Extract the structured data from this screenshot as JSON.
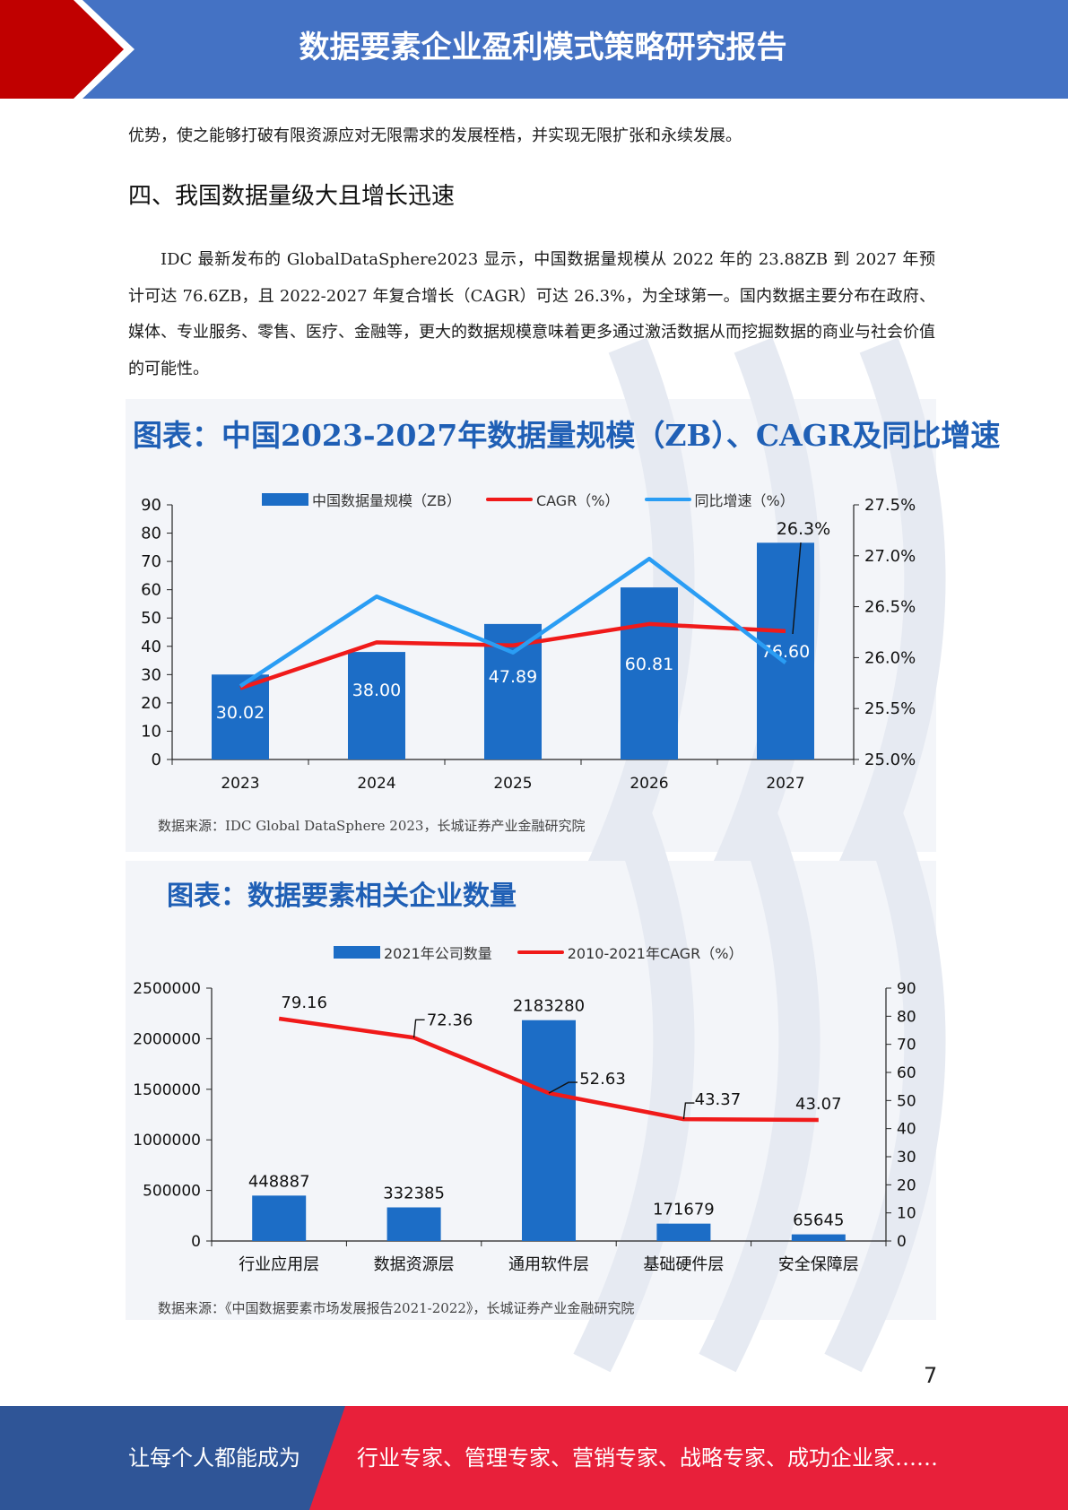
{
  "header": {
    "title": "数据要素企业盈利模式策略研究报告"
  },
  "paragraph1": "优势，使之能够打破有限资源应对无限需求的发展桎梏，并实现无限扩张和永续发展。",
  "section_title": "四、我国数据量级大且增长迅速",
  "paragraph2": "IDC 最新发布的 GlobalDataSphere2023 显示，中国数据量规模从 2022 年的 23.88ZB 到 2027 年预计可达 76.6ZB，且 2022-2027 年复合增长（CAGR）可达 26.3%，为全球第一。国内数据主要分布在政府、媒体、专业服务、零售、医疗、金融等，更大的数据规模意味着更多通过激活数据从而挖掘数据的商业与社会价值的可能性。",
  "chart_data": [
    {
      "type": "bar",
      "title": "图表：中国2023-2027年数据量规模（ZB）、CAGR及同比增速",
      "categories": [
        "2023",
        "2024",
        "2025",
        "2026",
        "2027"
      ],
      "series": [
        {
          "name": "中国数据量规模（ZB）",
          "type": "bar",
          "axis": "left",
          "color": "#1c6dc6",
          "values": [
            30.02,
            38.0,
            47.89,
            60.81,
            76.6
          ],
          "labels": [
            "30.02",
            "38.00",
            "47.89",
            "60.81",
            "76.60"
          ]
        },
        {
          "name": "CAGR（%）",
          "type": "line",
          "axis": "right",
          "color": "#f01a1a",
          "values": [
            25.7,
            26.15,
            26.12,
            26.33,
            26.26
          ]
        },
        {
          "name": "同比增速（%）",
          "type": "line",
          "axis": "right",
          "color": "#2a9df4",
          "values": [
            25.72,
            26.6,
            26.05,
            26.97,
            25.95
          ]
        }
      ],
      "annotation": "26.3%",
      "yleft_ticks": [
        "0",
        "10",
        "20",
        "30",
        "40",
        "50",
        "60",
        "70",
        "80",
        "90"
      ],
      "yleft_lim": [
        0,
        90
      ],
      "yright_ticks": [
        "25.0%",
        "25.5%",
        "26.0%",
        "26.5%",
        "27.0%",
        "27.5%"
      ],
      "yright_lim": [
        25.0,
        27.5
      ],
      "legend_position": "top",
      "source": "数据来源：IDC Global DataSphere 2023，长城证券产业金融研究院"
    },
    {
      "type": "bar",
      "title": "图表：数据要素相关企业数量",
      "categories": [
        "行业应用层",
        "数据资源层",
        "通用软件层",
        "基础硬件层",
        "安全保障层"
      ],
      "series": [
        {
          "name": "2021年公司数量",
          "type": "bar",
          "axis": "left",
          "color": "#1c6dc6",
          "values": [
            448887,
            332385,
            2183280,
            171679,
            65645
          ],
          "labels": [
            "448887",
            "332385",
            "2183280",
            "171679",
            "65645"
          ]
        },
        {
          "name": "2010-2021年CAGR（%）",
          "type": "line",
          "axis": "right",
          "color": "#f01a1a",
          "values": [
            79.16,
            72.36,
            52.63,
            43.37,
            43.07
          ],
          "labels": [
            "79.16",
            "72.36",
            "52.63",
            "43.37",
            "43.07"
          ]
        }
      ],
      "yleft_ticks": [
        "0",
        "500000",
        "1000000",
        "1500000",
        "2000000",
        "2500000"
      ],
      "yleft_lim": [
        0,
        2500000
      ],
      "yright_ticks": [
        "0",
        "10",
        "20",
        "30",
        "40",
        "50",
        "60",
        "70",
        "80",
        "90"
      ],
      "yright_lim": [
        0,
        90
      ],
      "legend_position": "top",
      "source": "数据来源：《中国数据要素市场发展报告2021-2022》，长城证券产业金融研究院"
    }
  ],
  "page_number": "7",
  "footer": {
    "left": "让每个人都能成为",
    "right": "行业专家、管理专家、营销专家、战略专家、成功企业家……"
  },
  "colors": {
    "header_blue": "#4472c4",
    "accent_red": "#c00000",
    "footer_red": "#e8203a",
    "footer_blue": "#2f5597",
    "bar_blue": "#1c6dc6",
    "title_blue": "#1f5fb5"
  }
}
